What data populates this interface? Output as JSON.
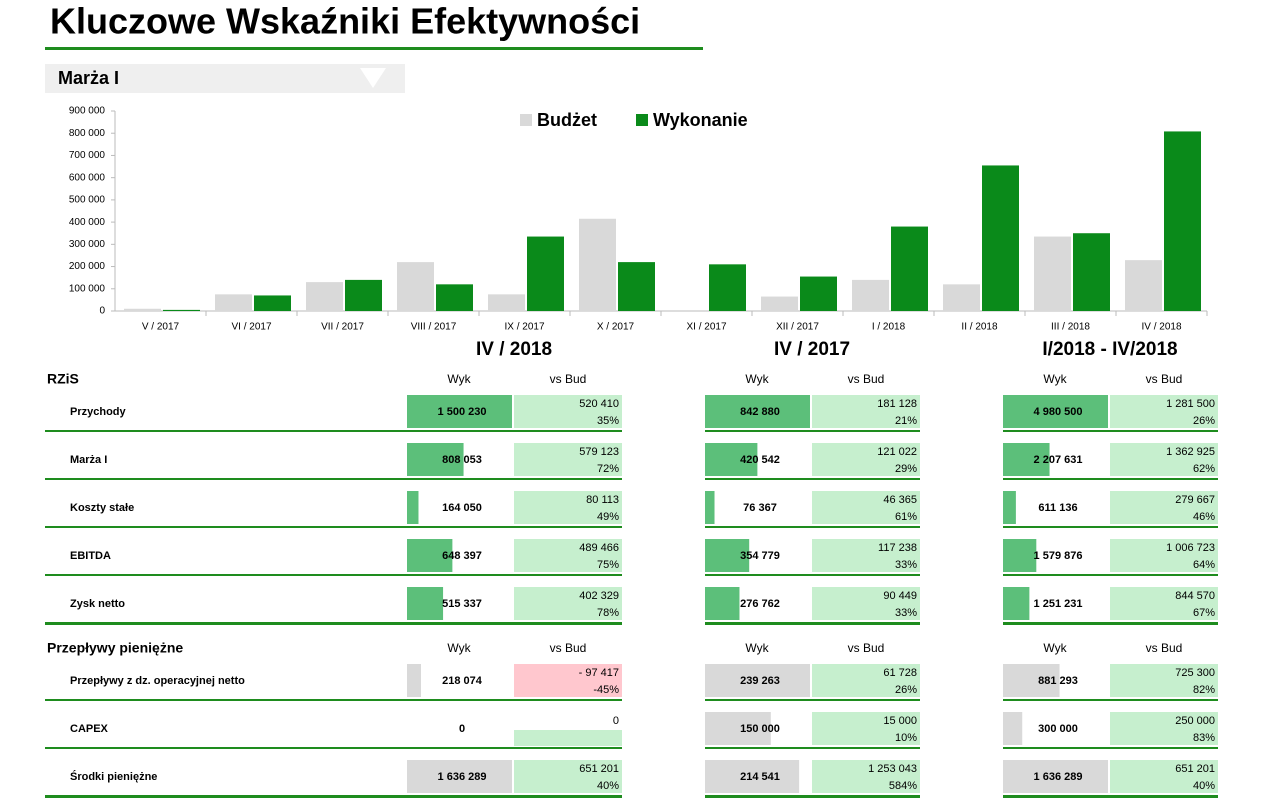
{
  "header": {
    "title": "Kluczowe Wskaźniki Efektywności"
  },
  "chart_data": {
    "type": "bar",
    "title": "Marża I",
    "categories": [
      "V / 2017",
      "VI / 2017",
      "VII / 2017",
      "VIII / 2017",
      "IX / 2017",
      "X / 2017",
      "XI / 2017",
      "XII / 2017",
      "I / 2018",
      "II / 2018",
      "III / 2018",
      "IV / 2018"
    ],
    "series": [
      {
        "name": "Budżet",
        "color": "#d9d9d9",
        "values": [
          10000,
          75000,
          130000,
          220000,
          75000,
          415000,
          0,
          65000,
          140000,
          120000,
          335000,
          228930
        ]
      },
      {
        "name": "Wykonanie",
        "color": "#0a8a1a",
        "values": [
          5000,
          70000,
          140000,
          120000,
          335000,
          220000,
          210000,
          155000,
          380000,
          655000,
          350000,
          808053
        ]
      }
    ],
    "ylim": [
      0,
      900000
    ],
    "yticks": [
      0,
      {
        "value": 100000,
        "label": "100 000"
      },
      {
        "value": 200000,
        "label": "200 000"
      },
      {
        "value": 300000,
        "label": "300 000"
      },
      {
        "value": 400000,
        "label": "400 000"
      },
      {
        "value": 500000,
        "label": "500 000"
      },
      {
        "value": 600000,
        "label": "600 000"
      },
      {
        "value": 700000,
        "label": "700 000"
      },
      {
        "value": 800000,
        "label": "800 000"
      },
      {
        "value": 900000,
        "label": "900 000"
      }
    ],
    "legend": "top"
  },
  "kpi": {
    "periods": [
      "IV / 2018",
      "IV / 2017",
      "I/2018 - IV/2018"
    ],
    "sections": [
      {
        "title": "RZiS",
        "columns": [
          "Wyk",
          "vs Bud"
        ],
        "bar_color": "#5cbf7a",
        "rows": [
          {
            "label": "Przychody",
            "cells": [
              {
                "wyk": {
                  "value": 1500230,
                  "label": "1 500 230"
                },
                "diff": {
                  "value": 520410,
                  "label": "520 410"
                },
                "pct": "35%"
              },
              {
                "wyk": {
                  "value": 842880,
                  "label": "842 880"
                },
                "diff": {
                  "value": 181128,
                  "label": "181 128"
                },
                "pct": "21%"
              },
              {
                "wyk": {
                  "value": 4980500,
                  "label": "4 980 500"
                },
                "diff": {
                  "value": 1281500,
                  "label": "1 281 500"
                },
                "pct": "26%"
              }
            ]
          },
          {
            "label": "Marża I",
            "cells": [
              {
                "wyk": {
                  "value": 808053,
                  "label": "808 053"
                },
                "diff": {
                  "value": 579123,
                  "label": "579 123"
                },
                "pct": "72%"
              },
              {
                "wyk": {
                  "value": 420542,
                  "label": "420 542"
                },
                "diff": {
                  "value": 121022,
                  "label": "121 022"
                },
                "pct": "29%"
              },
              {
                "wyk": {
                  "value": 2207631,
                  "label": "2 207 631"
                },
                "diff": {
                  "value": 1362925,
                  "label": "1 362 925"
                },
                "pct": "62%"
              }
            ]
          },
          {
            "label": "Koszty stałe",
            "cells": [
              {
                "wyk": {
                  "value": 164050,
                  "label": "164 050"
                },
                "diff": {
                  "value": 80113,
                  "label": "80 113"
                },
                "pct": "49%"
              },
              {
                "wyk": {
                  "value": 76367,
                  "label": "76 367"
                },
                "diff": {
                  "value": 46365,
                  "label": "46 365"
                },
                "pct": "61%"
              },
              {
                "wyk": {
                  "value": 611136,
                  "label": "611 136"
                },
                "diff": {
                  "value": 279667,
                  "label": "279 667"
                },
                "pct": "46%"
              }
            ]
          },
          {
            "label": "EBITDA",
            "cells": [
              {
                "wyk": {
                  "value": 648397,
                  "label": "648 397"
                },
                "diff": {
                  "value": 489466,
                  "label": "489 466"
                },
                "pct": "75%"
              },
              {
                "wyk": {
                  "value": 354779,
                  "label": "354 779"
                },
                "diff": {
                  "value": 117238,
                  "label": "117 238"
                },
                "pct": "33%"
              },
              {
                "wyk": {
                  "value": 1579876,
                  "label": "1 579 876"
                },
                "diff": {
                  "value": 1006723,
                  "label": "1 006 723"
                },
                "pct": "64%"
              }
            ]
          },
          {
            "label": "Zysk netto",
            "cells": [
              {
                "wyk": {
                  "value": 515337,
                  "label": "515 337"
                },
                "diff": {
                  "value": 402329,
                  "label": "402 329"
                },
                "pct": "78%"
              },
              {
                "wyk": {
                  "value": 276762,
                  "label": "276 762"
                },
                "diff": {
                  "value": 90449,
                  "label": "90 449"
                },
                "pct": "33%"
              },
              {
                "wyk": {
                  "value": 1251231,
                  "label": "1 251 231"
                },
                "diff": {
                  "value": 844570,
                  "label": "844 570"
                },
                "pct": "67%"
              }
            ]
          }
        ]
      },
      {
        "title": "Przepływy pieniężne",
        "columns": [
          "Wyk",
          "vs Bud"
        ],
        "bar_color": "#d9d9d9",
        "rows": [
          {
            "label": "Przepływy z dz. operacyjnej netto",
            "cells": [
              {
                "wyk": {
                  "value": 218074,
                  "label": "218 074"
                },
                "diff": {
                  "value": -97417,
                  "label": "- 97 417"
                },
                "pct": "-45%"
              },
              {
                "wyk": {
                  "value": 239263,
                  "label": "239 263"
                },
                "diff": {
                  "value": 61728,
                  "label": "61 728"
                },
                "pct": "26%"
              },
              {
                "wyk": {
                  "value": 881293,
                  "label": "881 293"
                },
                "diff": {
                  "value": 725300,
                  "label": "725 300"
                },
                "pct": "82%"
              }
            ]
          },
          {
            "label": "CAPEX",
            "cells": [
              {
                "wyk": {
                  "value": 0,
                  "label": "0"
                },
                "diff": {
                  "value": 0,
                  "label": "0"
                }
              },
              {
                "wyk": {
                  "value": 150000,
                  "label": "150 000"
                },
                "diff": {
                  "value": 15000,
                  "label": "15 000"
                },
                "pct": "10%"
              },
              {
                "wyk": {
                  "value": 300000,
                  "label": "300 000"
                },
                "diff": {
                  "value": 250000,
                  "label": "250 000"
                },
                "pct": "83%"
              }
            ]
          },
          {
            "label": "Środki pieniężne",
            "cells": [
              {
                "wyk": {
                  "value": 1636289,
                  "label": "1 636 289"
                },
                "diff": {
                  "value": 651201,
                  "label": "651 201"
                },
                "pct": "40%"
              },
              {
                "wyk": {
                  "value": 214541,
                  "label": "214 541"
                },
                "diff": {
                  "value": 1253043,
                  "label": "1 253 043"
                },
                "pct": "584%"
              },
              {
                "wyk": {
                  "value": 1636289,
                  "label": "1 636 289"
                },
                "diff": {
                  "value": 651201,
                  "label": "651 201"
                },
                "pct": "40%"
              }
            ]
          }
        ]
      }
    ]
  }
}
